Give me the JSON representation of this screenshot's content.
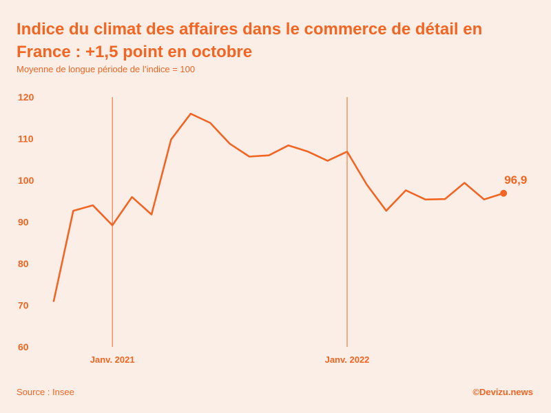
{
  "title": "Indice du climat des affaires dans le commerce de détail en France : +1,5 point en octobre",
  "subtitle": "Moyenne de longue période de l’indice = 100",
  "source": "Source : Insee",
  "brand": "©Devizu.news",
  "colors": {
    "accent": "#f26522",
    "background": "#fbeee7"
  },
  "chart_data": {
    "type": "line",
    "title": "Indice du climat des affaires dans le commerce de détail en France : +1,5 point en octobre",
    "subtitle": "Moyenne de longue période de l’indice = 100",
    "x": [
      "2020-10",
      "2020-11",
      "2020-12",
      "2021-01",
      "2021-02",
      "2021-03",
      "2021-04",
      "2021-05",
      "2021-06",
      "2021-07",
      "2021-08",
      "2021-09",
      "2021-10",
      "2021-11",
      "2021-12",
      "2022-01",
      "2022-02",
      "2022-03",
      "2022-04",
      "2022-05",
      "2022-06",
      "2022-07",
      "2022-08",
      "2022-09",
      "2022-10"
    ],
    "series": [
      {
        "values": [
          71.0,
          92.7,
          94.0,
          89.2,
          96.0,
          91.8,
          109.8,
          116.0,
          113.8,
          108.8,
          105.7,
          106.0,
          108.4,
          106.9,
          104.7,
          106.9,
          99.0,
          92.7,
          97.6,
          95.4,
          95.5,
          99.4,
          95.4,
          96.9,
          null
        ]
      }
    ],
    "x_tick_labels": [
      "Janv. 2021",
      "Janv. 2022"
    ],
    "y_ticks": [
      60,
      70,
      80,
      90,
      100,
      110,
      120
    ],
    "ylim": [
      60,
      120
    ],
    "last_value_label": "96,9",
    "grid": false
  }
}
